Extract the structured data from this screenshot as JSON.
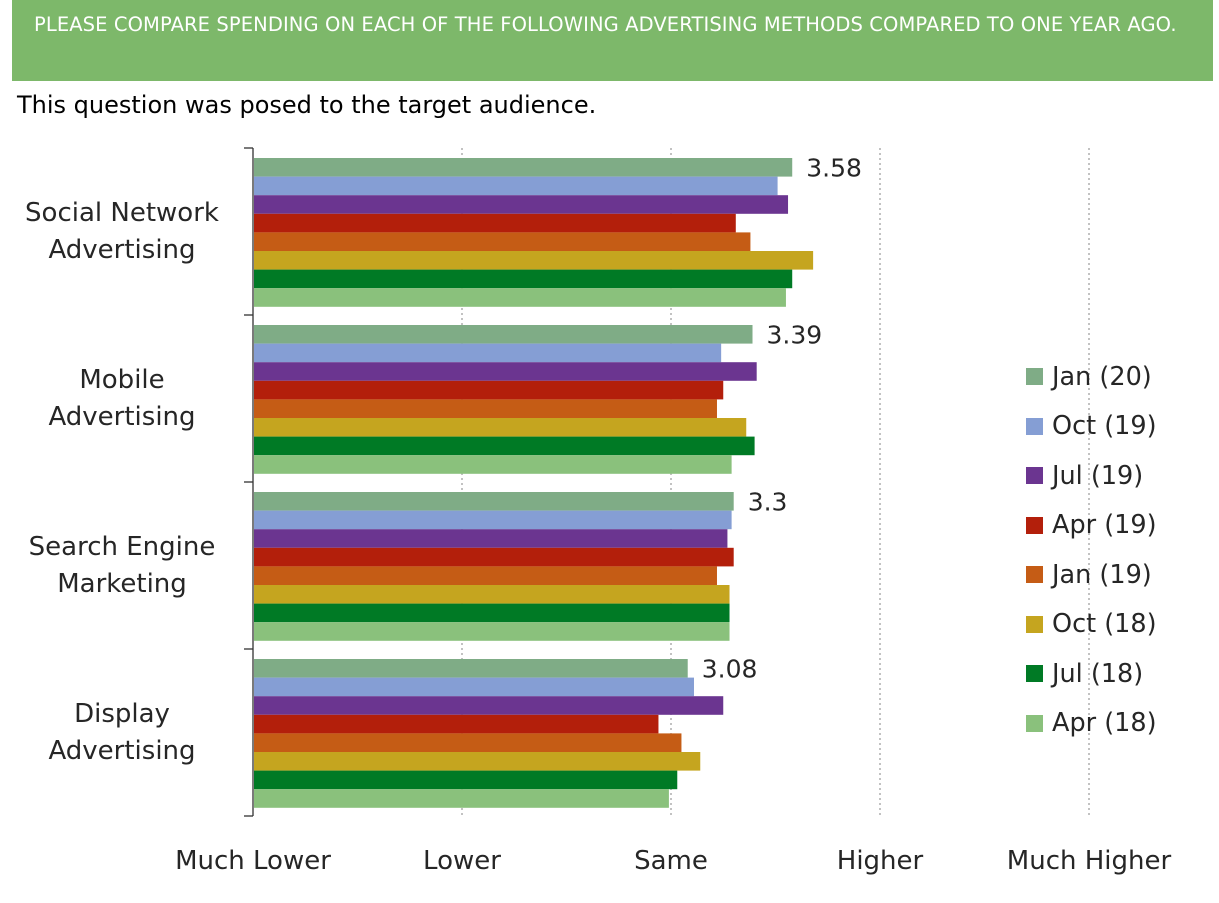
{
  "header": {
    "title": "PLEASE COMPARE SPENDING ON EACH OF THE FOLLOWING ADVERTISING METHODS COMPARED TO ONE YEAR AGO.",
    "subtitle": "This question was posed to the target audience."
  },
  "colors": {
    "banner": "#7db86a",
    "grid": "#999999",
    "axis": "#333333"
  },
  "chart_data": {
    "type": "bar",
    "orientation": "horizontal",
    "categories": [
      "Social Network\nAdvertising",
      "Mobile\nAdvertising",
      "Search Engine\nMarketing",
      "Display\nAdvertising"
    ],
    "xlim": [
      1,
      5
    ],
    "x_ticks": [
      {
        "value": 1,
        "label": "Much Lower"
      },
      {
        "value": 2,
        "label": "Lower"
      },
      {
        "value": 3,
        "label": "Same"
      },
      {
        "value": 4,
        "label": "Higher"
      },
      {
        "value": 5,
        "label": "Much Higher"
      }
    ],
    "grid": "vertical dotted",
    "legend_position": "right",
    "series": [
      {
        "name": "Jan (20)",
        "color": "#7fac86",
        "values": [
          3.58,
          3.39,
          3.3,
          3.08
        ]
      },
      {
        "name": "Oct (19)",
        "color": "#859ed4",
        "values": [
          3.51,
          3.24,
          3.29,
          3.11
        ]
      },
      {
        "name": "Jul (19)",
        "color": "#6b3590",
        "values": [
          3.56,
          3.41,
          3.27,
          3.25
        ]
      },
      {
        "name": "Apr (19)",
        "color": "#b31f0b",
        "values": [
          3.31,
          3.25,
          3.3,
          2.94
        ]
      },
      {
        "name": "Jan (19)",
        "color": "#c55c15",
        "values": [
          3.38,
          3.22,
          3.22,
          3.05
        ]
      },
      {
        "name": "Oct (18)",
        "color": "#c5a51f",
        "values": [
          3.68,
          3.36,
          3.28,
          3.14
        ]
      },
      {
        "name": "Jul (18)",
        "color": "#007a25",
        "values": [
          3.58,
          3.4,
          3.28,
          3.03
        ]
      },
      {
        "name": "Apr (18)",
        "color": "#8ac17c",
        "values": [
          3.55,
          3.29,
          3.28,
          2.99
        ]
      }
    ],
    "data_labels": [
      "3.58",
      "3.39",
      "3.3",
      "3.08"
    ]
  }
}
